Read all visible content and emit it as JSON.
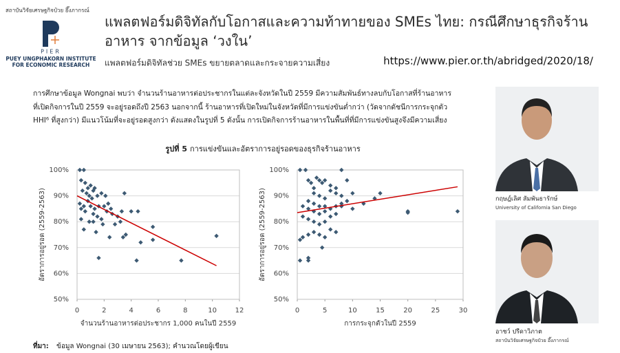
{
  "header": {
    "org_thai": "สถาบันวิจัยเศรษฐกิจป๋วย อึ๊งภากรณ์",
    "logo": "PIER",
    "org_en_1": "PUEY UNGPHAKORN INSTITUTE",
    "org_en_2": "FOR ECONOMIC RESEARCH",
    "title_lines": [
      "แพลตฟอร์มดิจิทัลกับโอกาสและความท้าทายของ SMEs ไทย: กรณีศึกษาธุรกิจร้าน",
      "อาหาร จากข้อมูล ‘วงใน’"
    ],
    "subtitle": "แพลตฟอร์มดิจิทัลช่วย SMEs ขยายตลาดและกระจายความเสี่ยง",
    "url": "https://www.pier.or.th/abridged/2020/18/"
  },
  "body": {
    "paragraph_lines": [
      "การศึกษาข้อมูล Wongnai พบว่า จำนวนร้านอาหารต่อประชากรในแต่ละจังหวัดในปี 2559 มีความสัมพันธ์ทางลบกับโอกาสที่ร้านอาหาร",
      "ที่เปิดกิจการในปี 2559 จะอยู่รอดถึงปี 2563 นอกจากนี้ ร้านอาหารที่เปิดใหม่ในจังหวัดที่มีการแข่งขันต่ำกว่า (วัดจากดัชนีการกระจุกตัว",
      "HHI⁶ ที่สูงกว่า) มีแนวโน้มที่จะอยู่รอดสูงกว่า ดังแสดงในรูปที่ 5 ดังนั้น การเปิดกิจการร้านอาหารในพื้นที่ที่มีการแข่งขันสูงจึงมีความเสี่ยง"
    ],
    "figure_label": "รูปที่ 5",
    "figure_title": "การแข่งขันและอัตราการอยู่รอดของธุรกิจร้านอาหาร",
    "source_label": "ที่มา:",
    "source_text": "ข้อมูล Wongnai (30 เมษายน 2563); คำนวณโดยผู้เขียน"
  },
  "people": [
    {
      "name": "กฤษฎ์เลิศ สัมพันธารักษ์",
      "affiliation": "University of California San Diego"
    },
    {
      "name": "อาชว์ ปรีดาวิภาต",
      "affiliation": "สถาบันวิจัยเศรษฐกิจป๋วย อึ๊งภากรณ์"
    }
  ],
  "chart_data": [
    {
      "type": "scatter",
      "xlabel": "จำนวนร้านอาหารต่อประชากร 1,000 คนในปี 2559",
      "ylabel": "อัตราการอยู่รอด (2559-2563)",
      "xlim": [
        0,
        12
      ],
      "xticks": [
        0,
        2,
        4,
        6,
        8,
        10,
        12
      ],
      "ylim": [
        50,
        100
      ],
      "yticks": [
        {
          "value": 50,
          "label": "50%"
        },
        {
          "value": 60,
          "label": "60%"
        },
        {
          "value": 70,
          "label": "70%"
        },
        {
          "value": 80,
          "label": "80%"
        },
        {
          "value": 90,
          "label": "90%"
        },
        {
          "value": 100,
          "label": "100%"
        }
      ],
      "grid": true,
      "color": "#3d5a73",
      "x": [
        0.2,
        0.5,
        0.3,
        0.6,
        0.8,
        1,
        1.2,
        1.3,
        0.4,
        0.7,
        0.9,
        1.1,
        1.5,
        1.8,
        2.1,
        0.2,
        0.5,
        0.8,
        1,
        1.3,
        1.6,
        2,
        2.3,
        2.5,
        0.3,
        0.6,
        1.2,
        1.5,
        1.8,
        2.2,
        2.6,
        3,
        3.3,
        3.5,
        3.6,
        3.4,
        2.8,
        4,
        4.5,
        4.7,
        4.4,
        1.9,
        1.2,
        0.9,
        0.3,
        0.5,
        5.6,
        5.6,
        7.7,
        10.3,
        1.6,
        2.4,
        3.2,
        1.4
      ],
      "values": [
        100,
        100,
        96,
        95,
        93,
        94,
        92,
        93,
        92,
        91,
        90,
        89,
        90,
        91,
        90,
        87,
        86,
        88,
        86,
        85,
        86,
        86,
        87,
        85,
        85,
        84,
        83,
        82,
        81,
        84,
        83,
        82,
        84,
        91,
        75,
        74,
        79,
        84,
        84,
        72,
        65,
        79,
        80,
        80,
        81,
        77,
        78,
        73,
        65,
        74.5,
        66,
        74,
        80,
        76
      ],
      "trendline": {
        "color": "#cc0000",
        "x": [
          0,
          10.3
        ],
        "values": [
          90,
          63
        ]
      }
    },
    {
      "type": "scatter",
      "xlabel": "การกระจุกตัวในปี 2559",
      "ylabel": "อัตราการอยู่รอด (2559-2563)",
      "xlim": [
        0,
        30
      ],
      "xticks": [
        0,
        5,
        10,
        15,
        20,
        25,
        30
      ],
      "ylim": [
        50,
        100
      ],
      "yticks": [
        {
          "value": 50,
          "label": "50%"
        },
        {
          "value": 60,
          "label": "60%"
        },
        {
          "value": 70,
          "label": "70%"
        },
        {
          "value": 80,
          "label": "80%"
        },
        {
          "value": 90,
          "label": "90%"
        },
        {
          "value": 100,
          "label": "100%"
        }
      ],
      "grid": true,
      "color": "#3d5a73",
      "x": [
        0.5,
        1.5,
        2,
        2.5,
        3,
        3.5,
        4,
        4.5,
        5,
        6,
        7,
        8,
        9,
        10,
        14,
        15,
        3,
        4,
        5,
        6,
        7,
        8,
        2,
        3,
        4,
        5,
        6,
        7,
        8,
        9,
        1,
        2,
        3,
        4,
        5,
        6,
        7,
        10,
        12,
        1,
        2,
        3,
        4,
        5,
        6,
        2,
        3,
        4,
        5,
        1,
        0.5,
        2,
        2,
        0.5,
        7,
        20,
        20,
        29,
        8,
        4.5
      ],
      "values": [
        100,
        100,
        96,
        95,
        93,
        97,
        96,
        95,
        96,
        94,
        93,
        100,
        96,
        91,
        89,
        91,
        91,
        90,
        89,
        92,
        91,
        90,
        88,
        87,
        86,
        86,
        85,
        86,
        87,
        88,
        86,
        85,
        84,
        83,
        84,
        82,
        83,
        85,
        87,
        82,
        81,
        80,
        79,
        80,
        77,
        75,
        76,
        75,
        74,
        74,
        73,
        66,
        65,
        65,
        76,
        84,
        83.5,
        84,
        86,
        70
      ],
      "trendline": {
        "color": "#cc0000",
        "x": [
          0,
          29
        ],
        "values": [
          83.5,
          93.5
        ]
      }
    }
  ]
}
